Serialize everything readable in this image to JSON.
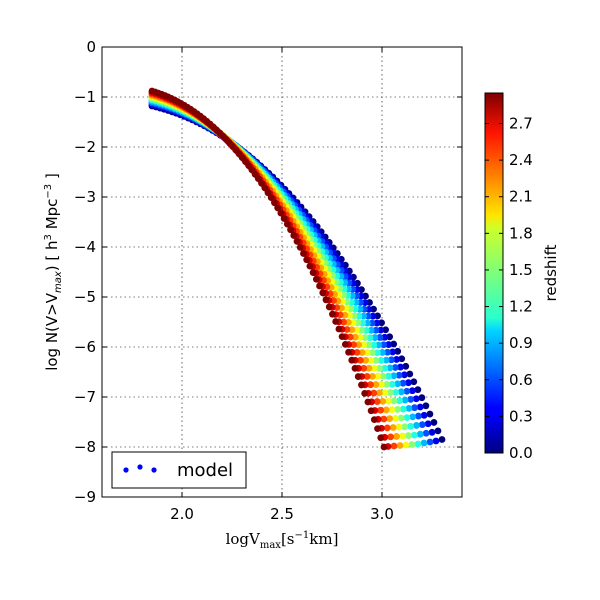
{
  "chart_data": {
    "type": "scatter",
    "x_ticks": [
      2.0,
      2.5,
      3.0
    ],
    "y_ticks": [
      0,
      -1,
      -2,
      -3,
      -4,
      -5,
      -6,
      -7,
      -8,
      -9
    ],
    "x_tick_labels": [
      "2.0",
      "2.5",
      "3.0"
    ],
    "y_tick_labels": [
      "0",
      "−1",
      "−2",
      "−3",
      "−4",
      "−5",
      "−6",
      "−7",
      "−8",
      "−9"
    ],
    "xlim": [
      1.6,
      3.4
    ],
    "ylim": [
      -9,
      0
    ],
    "xlabel": "logV",
    "xlabel_sub": "max",
    "xlabel_unit_pre": "[s",
    "xlabel_unit_sup": "−1",
    "xlabel_unit_post": "km]",
    "ylabel_pre": "log N(V>V",
    "ylabel_sub": "max",
    "ylabel_mid": ") [ h",
    "ylabel_sup1": "3",
    "ylabel_mid2": " Mpc",
    "ylabel_sup2": "−3",
    "ylabel_post": " ]",
    "grid": true,
    "legend": {
      "label": "model",
      "placement": "lower-left"
    },
    "colorbar": {
      "label": "redshift",
      "range": [
        0.0,
        2.95
      ],
      "ticks": [
        0.0,
        0.3,
        0.6,
        0.9,
        1.2,
        1.5,
        1.8,
        2.1,
        2.4,
        2.7
      ],
      "tick_labels": [
        "0.0",
        "0.3",
        "0.6",
        "0.9",
        "1.2",
        "1.5",
        "1.8",
        "2.1",
        "2.4",
        "2.7"
      ]
    },
    "series": [
      {
        "redshift": 0.0,
        "x_start": 1.85,
        "y_start": -1.18,
        "x_end": 3.3,
        "y_end": -7.85
      },
      {
        "redshift": 0.3,
        "x_start": 1.85,
        "y_start": -1.15,
        "x_end": 3.27,
        "y_end": -7.88
      },
      {
        "redshift": 0.6,
        "x_start": 1.85,
        "y_start": -1.12,
        "x_end": 3.24,
        "y_end": -7.9
      },
      {
        "redshift": 0.9,
        "x_start": 1.85,
        "y_start": -1.09,
        "x_end": 3.21,
        "y_end": -7.92
      },
      {
        "redshift": 1.2,
        "x_start": 1.85,
        "y_start": -1.06,
        "x_end": 3.18,
        "y_end": -7.94
      },
      {
        "redshift": 1.5,
        "x_start": 1.85,
        "y_start": -1.03,
        "x_end": 3.15,
        "y_end": -7.95
      },
      {
        "redshift": 1.8,
        "x_start": 1.85,
        "y_start": -1.0,
        "x_end": 3.12,
        "y_end": -7.96
      },
      {
        "redshift": 2.1,
        "x_start": 1.85,
        "y_start": -0.97,
        "x_end": 3.09,
        "y_end": -7.97
      },
      {
        "redshift": 2.4,
        "x_start": 1.85,
        "y_start": -0.94,
        "x_end": 3.06,
        "y_end": -7.98
      },
      {
        "redshift": 2.7,
        "x_start": 1.85,
        "y_start": -0.91,
        "x_end": 3.03,
        "y_end": -7.99
      },
      {
        "redshift": 2.95,
        "x_start": 1.85,
        "y_start": -0.88,
        "x_end": 3.01,
        "y_end": -8.0
      }
    ]
  }
}
